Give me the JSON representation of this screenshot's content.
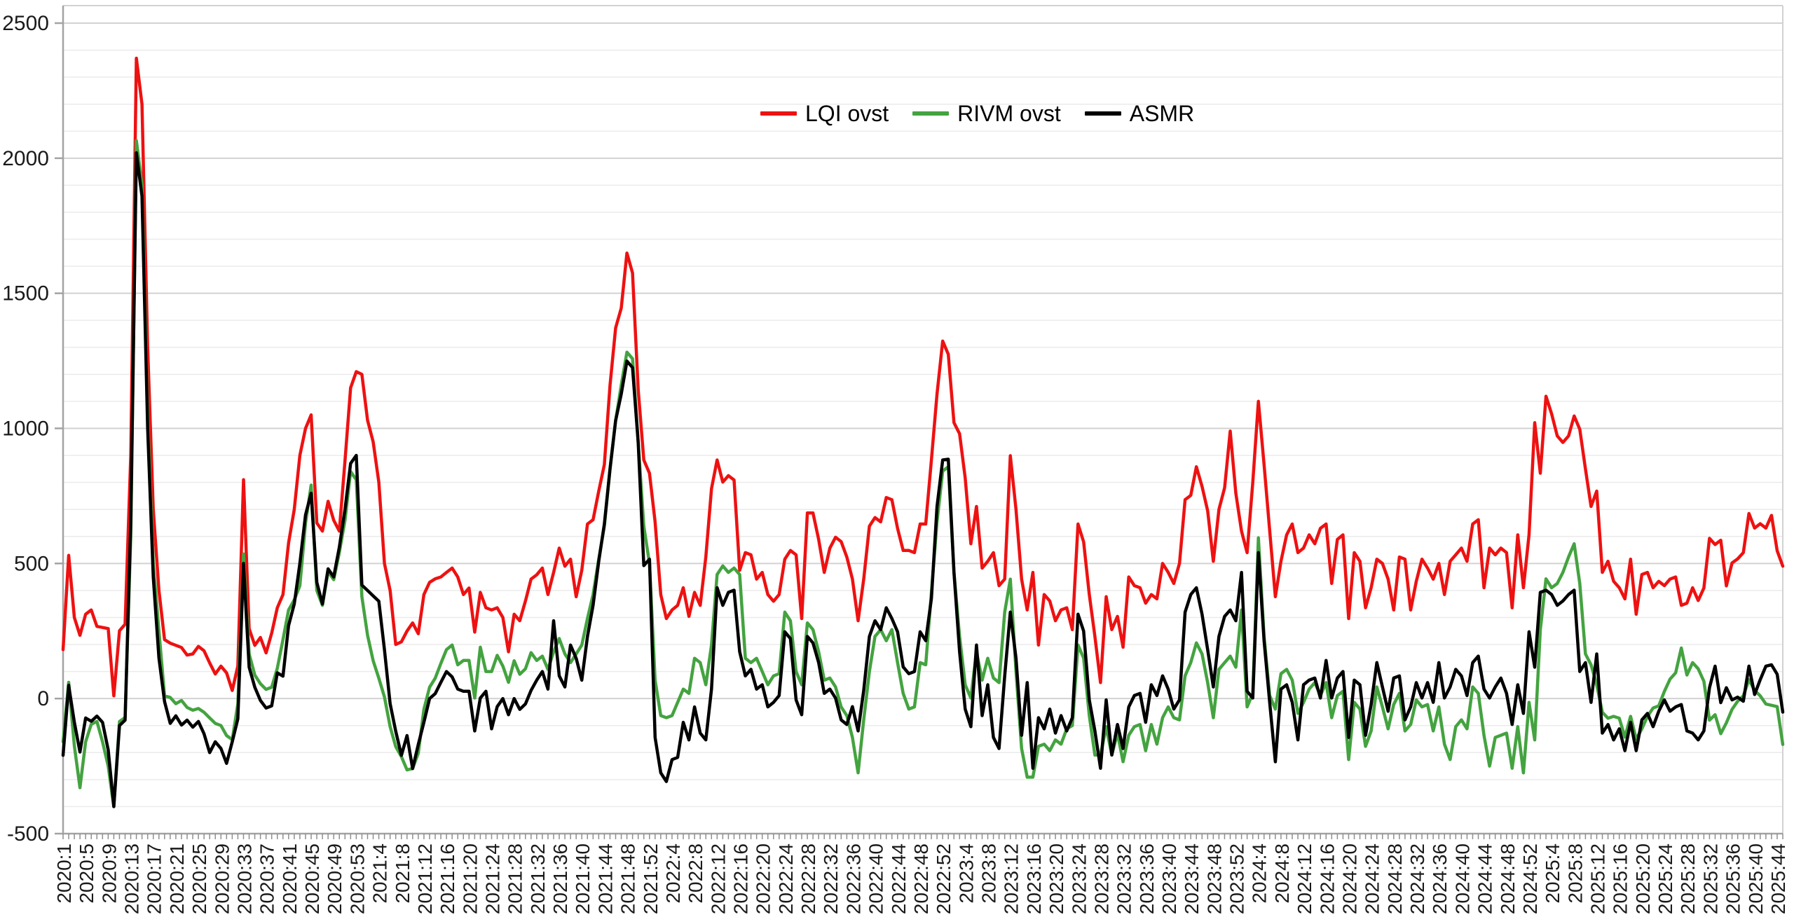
{
  "chart_data": {
    "type": "line",
    "title": "",
    "xlabel": "",
    "ylabel": "",
    "grid": true,
    "legend_position": "top-center",
    "y_axis": {
      "min": -500,
      "max": 2565,
      "major_step": 500,
      "minor_step": 100,
      "tick_labels": [
        "-500",
        "0",
        "500",
        "1000",
        "1500",
        "2000",
        "2500"
      ]
    },
    "x_axis": {
      "unit": "iso-week",
      "weeks_per_year": {
        "2020": 53,
        "2021": 52,
        "2022": 52,
        "2023": 52,
        "2024": 52,
        "2025": 45
      },
      "tick_labels": [
        "2020:1",
        "2020:5",
        "2020:9",
        "2020:13",
        "2020:17",
        "2020:21",
        "2020:25",
        "2020:29",
        "2020:33",
        "2020:37",
        "2020:41",
        "2020:45",
        "2020:49",
        "2020:53",
        "2021:4",
        "2021:8",
        "2021:12",
        "2021:16",
        "2021:20",
        "2021:24",
        "2021:28",
        "2021:32",
        "2021:36",
        "2021:40",
        "2021:44",
        "2021:48",
        "2021:52",
        "2022:4",
        "2022:8",
        "2022:12",
        "2022:16",
        "2022:20",
        "2022:24",
        "2022:28",
        "2022:32",
        "2022:36",
        "2022:40",
        "2022:44",
        "2022:48",
        "2022:52",
        "2023:4",
        "2023:8",
        "2023:12",
        "2023:16",
        "2023:20",
        "2023:24",
        "2023:28",
        "2023:32",
        "2023:36",
        "2023:40",
        "2023:44",
        "2023:48",
        "2023:52",
        "2024:4",
        "2024:8",
        "2024:12",
        "2024:16",
        "2024:20",
        "2024:24",
        "2024:28",
        "2024:32",
        "2024:36",
        "2024:40",
        "2024:44",
        "2024:48",
        "2024:52",
        "2025:4",
        "2025:8",
        "2025:12",
        "2025:16",
        "2025:20",
        "2025:24",
        "2025:28",
        "2025:32",
        "2025:36",
        "2025:40",
        "2025:44"
      ]
    },
    "series": [
      {
        "name": "LQI ovst",
        "color": "#ee1111",
        "values": [
          181,
          530,
          300,
          234,
          312,
          328,
          267,
          263,
          259,
          10,
          251,
          275,
          900,
          2370,
          2200,
          1300,
          700,
          400,
          218,
          205,
          197,
          189,
          161,
          165,
          193,
          177,
          132,
          91,
          120,
          95,
          30,
          120,
          810,
          259,
          197,
          226,
          169,
          242,
          336,
          385,
          576,
          700,
          900,
          1000,
          1050,
          650,
          620,
          730,
          660,
          620,
          880,
          1150,
          1210,
          1200,
          1030,
          950,
          800,
          500,
          400,
          200,
          210,
          250,
          280,
          240,
          385,
          430,
          443,
          450,
          467,
          483,
          450,
          385,
          409,
          246,
          393,
          336,
          328,
          336,
          300,
          173,
          312,
          288,
          361,
          442,
          458,
          483,
          385,
          467,
          557,
          490,
          516,
          377,
          475,
          646,
          662,
          768,
          866,
          1160,
          1372,
          1445,
          1649,
          1575,
          1143,
          883,
          834,
          654,
          385,
          296,
          328,
          345,
          410,
          304,
          393,
          345,
          524,
          777,
          883,
          801,
          825,
          809,
          475,
          540,
          532,
          442,
          467,
          385,
          360,
          385,
          516,
          548,
          532,
          296,
          687,
          687,
          589,
          467,
          557,
          597,
          581,
          524,
          442,
          288,
          442,
          638,
          670,
          654,
          744,
          736,
          630,
          548,
          548,
          540,
          646,
          646,
          883,
          1127,
          1323,
          1274,
          1021,
          980,
          817,
          573,
          711,
          483,
          508,
          540,
          418,
          442,
          899,
          700,
          442,
          328,
          467,
          198,
          385,
          361,
          288,
          328,
          336,
          255,
          646,
          580,
          385,
          230,
          59,
          377,
          255,
          304,
          190,
          450,
          418,
          410,
          353,
          385,
          369,
          500,
          467,
          426,
          500,
          736,
          752,
          858,
          785,
          695,
          508,
          700,
          780,
          990,
          760,
          620,
          540,
          800,
          1100,
          866,
          622,
          377,
          508,
          606,
          646,
          540,
          557,
          606,
          573,
          630,
          646,
          426,
          589,
          606,
          296,
          540,
          508,
          336,
          410,
          516,
          500,
          442,
          328,
          524,
          516,
          328,
          434,
          516,
          483,
          442,
          500,
          385,
          508,
          532,
          557,
          508,
          646,
          662,
          410,
          557,
          532,
          557,
          540,
          336,
          606,
          410,
          606,
          1021,
          834,
          1119,
          1054,
          972,
          948,
          972,
          1046,
          997,
          850,
          711,
          768,
          467,
          508,
          434,
          410,
          369,
          516,
          312,
          459,
          467,
          410,
          434,
          418,
          442,
          450,
          345,
          353,
          410,
          363,
          409,
          593,
          570,
          586,
          417,
          502,
          517,
          540,
          685,
          631,
          647,
          631,
          678,
          547,
          490
        ]
      },
      {
        "name": "RIVM ovst",
        "color": "#44a340",
        "values": [
          -160,
          60,
          -175,
          -330,
          -160,
          -95,
          -85,
          -160,
          -250,
          -400,
          -85,
          -70,
          600,
          2065,
          1900,
          1050,
          500,
          250,
          10,
          4,
          -19,
          -7,
          -33,
          -43,
          -37,
          -51,
          -72,
          -92,
          -100,
          -137,
          -152,
          -20,
          535,
          165,
          87,
          55,
          34,
          42,
          112,
          218,
          328,
          365,
          418,
          650,
          790,
          400,
          345,
          470,
          440,
          540,
          660,
          840,
          810,
          377,
          234,
          140,
          75,
          6,
          -104,
          -178,
          -215,
          -264,
          -259,
          -202,
          -40,
          42,
          75,
          130,
          181,
          198,
          125,
          141,
          141,
          2,
          190,
          100,
          100,
          160,
          120,
          60,
          140,
          90,
          110,
          170,
          141,
          157,
          108,
          173,
          222,
          165,
          133,
          165,
          198,
          296,
          385,
          516,
          638,
          850,
          1029,
          1160,
          1282,
          1258,
          948,
          638,
          500,
          68,
          -63,
          -71,
          -63,
          -14,
          35,
          19,
          149,
          133,
          51,
          198,
          459,
          491,
          467,
          483,
          459,
          149,
          133,
          149,
          100,
          51,
          84,
          92,
          320,
          288,
          100,
          51,
          280,
          255,
          173,
          68,
          76,
          43,
          -31,
          -63,
          -144,
          -275,
          -79,
          100,
          230,
          255,
          214,
          255,
          133,
          19,
          -39,
          -31,
          133,
          125,
          393,
          654,
          842,
          858,
          467,
          230,
          51,
          2,
          173,
          68,
          149,
          76,
          59,
          320,
          442,
          100,
          -185,
          -291,
          -291,
          -177,
          -169,
          -193,
          -153,
          -169,
          -112,
          -100,
          198,
          150,
          -63,
          -209,
          -209,
          -104,
          -209,
          -128,
          -234,
          -136,
          -104,
          -96,
          -193,
          -96,
          -169,
          -71,
          -31,
          -71,
          -79,
          84,
          133,
          206,
          165,
          59,
          -71,
          108,
          133,
          157,
          116,
          328,
          -31,
          19,
          595,
          230,
          11,
          -39,
          92,
          108,
          68,
          -55,
          -14,
          35,
          59,
          11,
          59,
          -71,
          11,
          27,
          -226,
          -14,
          -39,
          -177,
          -120,
          43,
          -31,
          -112,
          -22,
          19,
          -120,
          -96,
          -5,
          -31,
          -22,
          -120,
          -31,
          -169,
          -226,
          -104,
          -79,
          -112,
          43,
          19,
          -136,
          -250,
          -144,
          -136,
          -128,
          -258,
          -104,
          -275,
          -14,
          -153,
          255,
          443,
          410,
          426,
          467,
          524,
          573,
          426,
          165,
          125,
          51,
          -51,
          -73,
          -66,
          -73,
          -143,
          -66,
          -150,
          -112,
          -66,
          -35,
          -27,
          26,
          72,
          95,
          187,
          87,
          133,
          110,
          64,
          -80,
          -60,
          -130,
          -90,
          -40,
          -10,
          10,
          70,
          30,
          10,
          -20,
          -25,
          -30,
          -170
        ]
      },
      {
        "name": "ASMR",
        "color": "#000000",
        "values": [
          -210,
          49,
          -88,
          -198,
          -72,
          -84,
          -65,
          -88,
          -190,
          -400,
          -100,
          -80,
          650,
          2020,
          1860,
          1000,
          450,
          150,
          -11,
          -92,
          -64,
          -98,
          -80,
          -106,
          -85,
          -130,
          -200,
          -160,
          -185,
          -240,
          -160,
          -75,
          500,
          116,
          42,
          -7,
          -35,
          -27,
          95,
          83,
          270,
          350,
          500,
          680,
          760,
          430,
          350,
          480,
          450,
          560,
          700,
          870,
          900,
          420,
          400,
          380,
          360,
          181,
          -19,
          -121,
          -210,
          -137,
          -259,
          -170,
          -88,
          0,
          18,
          60,
          100,
          80,
          35,
          27,
          27,
          -120,
          2,
          27,
          -112,
          -30,
          0,
          -60,
          0,
          -40,
          -20,
          30,
          68,
          100,
          35,
          288,
          84,
          43,
          198,
          149,
          68,
          230,
          345,
          508,
          646,
          850,
          1029,
          1127,
          1249,
          1225,
          948,
          492,
          516,
          -144,
          -275,
          -307,
          -226,
          -218,
          -88,
          -153,
          -31,
          -128,
          -153,
          35,
          410,
          345,
          393,
          401,
          173,
          84,
          108,
          35,
          51,
          -31,
          -14,
          11,
          247,
          222,
          -5,
          -60,
          230,
          206,
          133,
          19,
          35,
          2,
          -79,
          -96,
          -30,
          -120,
          30,
          230,
          288,
          255,
          336,
          296,
          247,
          117,
          92,
          100,
          247,
          214,
          370,
          711,
          883,
          886,
          467,
          173,
          -39,
          -104,
          198,
          -63,
          51,
          -144,
          -185,
          84,
          320,
          150,
          -136,
          59,
          -258,
          -71,
          -112,
          -39,
          -128,
          -63,
          -120,
          -71,
          312,
          250,
          -5,
          -120,
          -258,
          -5,
          -209,
          -96,
          -185,
          -31,
          11,
          19,
          -88,
          51,
          11,
          84,
          35,
          -39,
          -5,
          320,
          385,
          410,
          312,
          181,
          43,
          230,
          304,
          328,
          288,
          467,
          27,
          2,
          540,
          214,
          -14,
          -234,
          35,
          51,
          -14,
          -153,
          51,
          68,
          76,
          2,
          141,
          2,
          76,
          100,
          -144,
          68,
          51,
          -136,
          -22,
          133,
          43,
          -47,
          76,
          84,
          -79,
          -31,
          59,
          2,
          59,
          -14,
          133,
          2,
          43,
          108,
          84,
          11,
          133,
          157,
          35,
          2,
          43,
          76,
          19,
          -96,
          51,
          -55,
          247,
          116,
          393,
          401,
          385,
          345,
          361,
          385,
          401,
          100,
          133,
          -14,
          165,
          -128,
          -96,
          -153,
          -112,
          -193,
          -88,
          -193,
          -79,
          -55,
          -104,
          -47,
          -5,
          -47,
          -31,
          -22,
          -120,
          -128,
          -153,
          -120,
          40,
          120,
          -15,
          40,
          -5,
          5,
          -10,
          120,
          15,
          70,
          120,
          125,
          90,
          -50
        ]
      }
    ]
  },
  "legend": {
    "items": [
      "LQI ovst",
      "RIVM ovst",
      "ASMR"
    ]
  },
  "style": {
    "background": "#ffffff",
    "minor_grid_color": "#ebebeb",
    "major_grid_color": "#d2d2d2",
    "axis_color": "#a3a3a3",
    "tick_color": "#8f8f8f",
    "label_color": "#1a1a1a"
  }
}
